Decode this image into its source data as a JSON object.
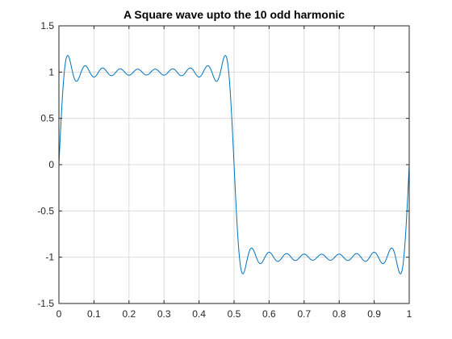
{
  "chart_data": {
    "type": "line",
    "title": "A Square wave upto the 10 odd harmonic",
    "xlabel": "",
    "ylabel": "",
    "xlim": [
      0,
      1
    ],
    "ylim": [
      -1.5,
      1.5
    ],
    "grid": true,
    "x_ticks": [
      0,
      0.1,
      0.2,
      0.3,
      0.4,
      0.5,
      0.6,
      0.7,
      0.8,
      0.9,
      1
    ],
    "x_tick_labels": [
      "0",
      "0.1",
      "0.2",
      "0.3",
      "0.4",
      "0.5",
      "0.6",
      "0.7",
      "0.8",
      "0.9",
      "1"
    ],
    "y_ticks": [
      -1.5,
      -1,
      -0.5,
      0,
      0.5,
      1,
      1.5
    ],
    "y_tick_labels": [
      "-1.5",
      "-1",
      "-0.5",
      "0",
      "0.5",
      "1",
      "1.5"
    ],
    "series": [
      {
        "function": "(4/π)·Σ sin(2π(2k−1)x)/(2k−1), k = 1…10",
        "harmonics": 10,
        "x_start": 0,
        "x_end": 1,
        "color": "#0072bd"
      }
    ]
  }
}
